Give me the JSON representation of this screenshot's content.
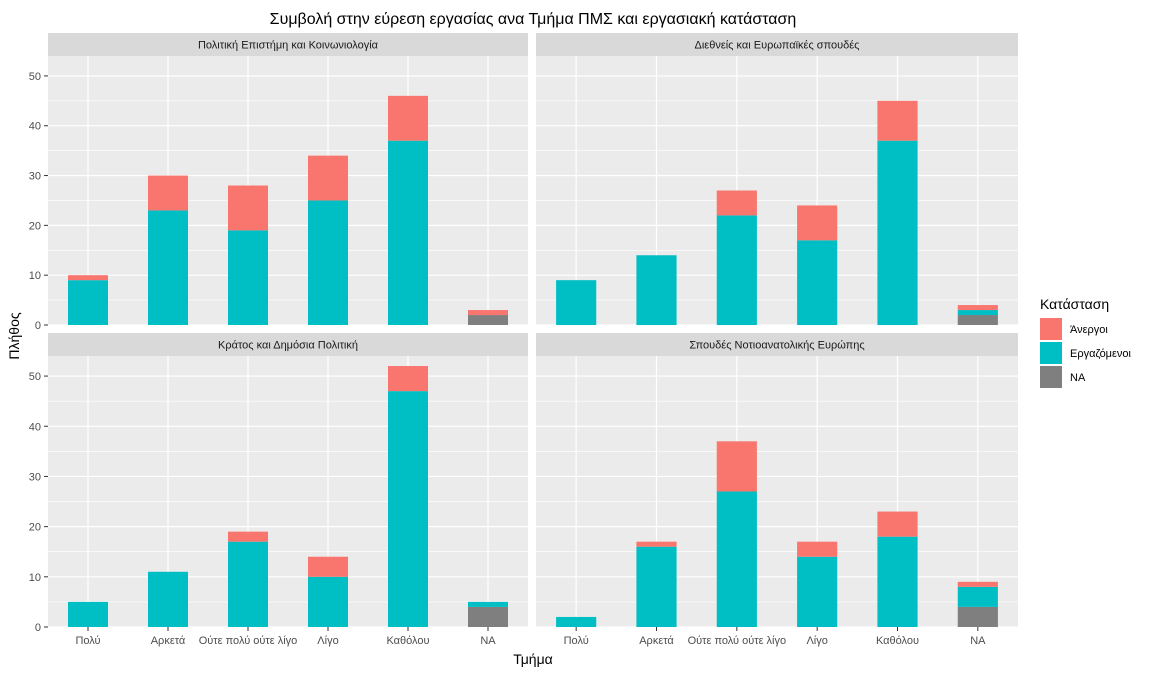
{
  "colors": {
    "unemployed": "#F8766D",
    "employed": "#00BFC4",
    "na": "#7F7F7F",
    "panel_bg": "#EBEBEB",
    "strip_bg": "#D9D9D9",
    "grid": "#FFFFFF"
  },
  "chart_data": {
    "type": "bar",
    "stacked": true,
    "title": "Συμβολή στην εύρεση εργασίας ανα Τμήμα ΠΜΣ και εργασιακή κατάσταση",
    "xlabel": "Τμήμα",
    "ylabel": "Πλήθος",
    "ylim": [
      0,
      54
    ],
    "yticks": [
      0,
      10,
      20,
      30,
      40,
      50
    ],
    "categories": [
      "Πολύ",
      "Αρκετά",
      "Ούτε πολύ ούτε λίγο",
      "Λίγο",
      "Καθόλου",
      "NA"
    ],
    "legend": {
      "title": "Κατάσταση",
      "position": "right",
      "entries": [
        {
          "key": "unemployed",
          "label": "Άνεργοι"
        },
        {
          "key": "employed",
          "label": "Εργαζόμενοι"
        },
        {
          "key": "na",
          "label": "NA"
        }
      ]
    },
    "panels": [
      {
        "title": "Πολιτική Επιστήμη και Κοινωνιολογία",
        "series": {
          "na": [
            0,
            0,
            0,
            0,
            0,
            2
          ],
          "employed": [
            9,
            23,
            19,
            25,
            37,
            0
          ],
          "unemployed": [
            1,
            7,
            9,
            9,
            9,
            1
          ]
        }
      },
      {
        "title": "Διεθνείς και Ευρωπαϊκές σπουδές",
        "series": {
          "na": [
            0,
            0,
            0,
            0,
            0,
            2
          ],
          "employed": [
            9,
            14,
            22,
            17,
            37,
            1
          ],
          "unemployed": [
            0,
            0,
            5,
            7,
            8,
            1
          ]
        }
      },
      {
        "title": "Κράτος και Δημόσια Πολιτική",
        "series": {
          "na": [
            0,
            0,
            0,
            0,
            0,
            4
          ],
          "employed": [
            5,
            11,
            17,
            10,
            47,
            1
          ],
          "unemployed": [
            0,
            0,
            2,
            4,
            5,
            0
          ]
        }
      },
      {
        "title": "Σπουδές Νοτιοανατολικής Ευρώπης",
        "series": {
          "na": [
            0,
            0,
            0,
            0,
            0,
            4
          ],
          "employed": [
            2,
            16,
            27,
            14,
            18,
            4
          ],
          "unemployed": [
            0,
            1,
            10,
            3,
            5,
            1
          ]
        }
      }
    ]
  }
}
